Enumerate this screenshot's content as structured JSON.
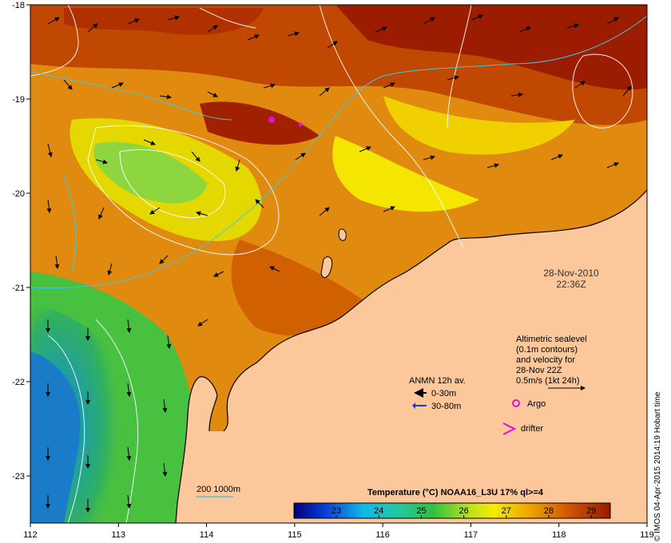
{
  "map": {
    "x_axis": {
      "range": [
        112,
        119
      ],
      "ticks": [
        "112",
        "113",
        "114",
        "115",
        "116",
        "117",
        "118",
        "119"
      ]
    },
    "y_axis": {
      "range": [
        -23.5,
        -18
      ],
      "ticks": [
        "-18",
        "-19",
        "-20",
        "-21",
        "-22",
        "-23"
      ]
    },
    "land_color": "#fcc89b",
    "colors": {
      "very_hot": "#9b1c00",
      "hot": "#c84a00",
      "warm": "#e09a10",
      "mid": "#f4e600",
      "cool": "#7cd84a",
      "cold": "#2aa89a"
    }
  },
  "date": {
    "line1": "28-Nov-2010",
    "line2": "22:36Z"
  },
  "altimetry_note": [
    "Altimetric sealevel",
    "(0.1m contours)",
    "and velocity for",
    "28-Nov 22Z",
    "0.5m/s (1kt 24h)"
  ],
  "legend": {
    "anmn_title": "ANMN 12h av.",
    "items": [
      {
        "label": "0-30m",
        "color": "#000000"
      },
      {
        "label": "30-80m",
        "color": "#1e3cc8"
      }
    ],
    "argo_label": "Argo",
    "drifter_label": "drifter",
    "argo_color": "#e010e0"
  },
  "bathymetry_label": "200  1000m",
  "colorbar": {
    "title": "Temperature (°C) NOAA16_L3U 17% ql>=4",
    "ticks": [
      "23",
      "24",
      "25",
      "26",
      "27",
      "28",
      "29"
    ]
  },
  "credit": "© IMOS 04-Apr-2015 2014:19 Hobart time"
}
